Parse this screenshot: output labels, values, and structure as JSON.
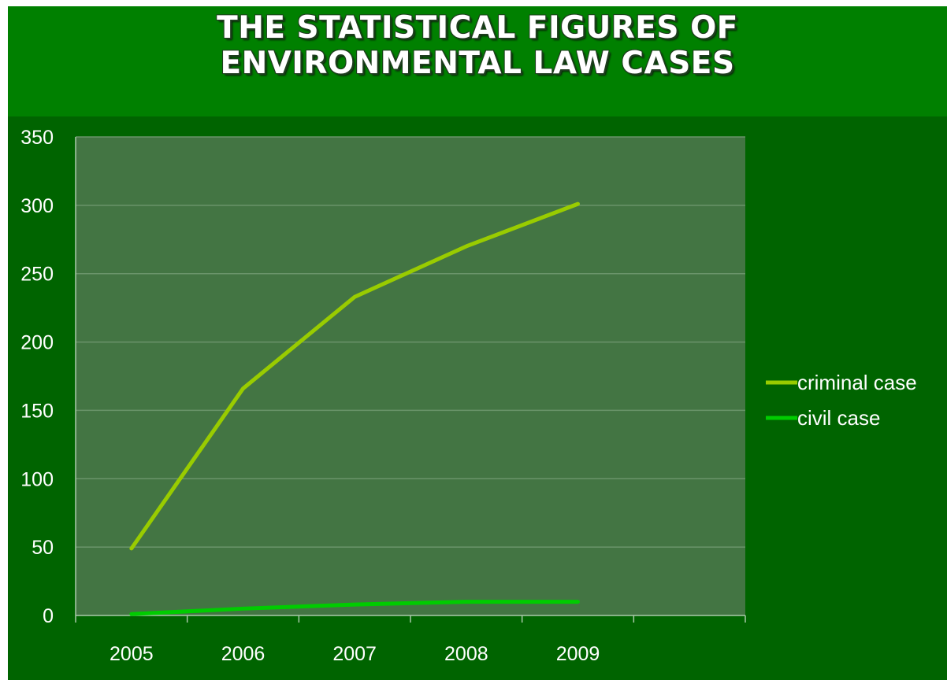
{
  "chart_data": {
    "type": "line",
    "title": "THE STATISTICAL FIGURES OF\nENVIRONMENTAL LAW CASES",
    "categories": [
      "2005",
      "2006",
      "2007",
      "2008",
      "2009"
    ],
    "yticks": [
      "0",
      "50",
      "100",
      "150",
      "200",
      "250",
      "300",
      "350"
    ],
    "ylim": [
      0,
      350
    ],
    "grid": true,
    "legend": "right",
    "series": [
      {
        "name": "criminal case",
        "values": [
          49,
          166,
          233,
          270,
          301
        ],
        "color": "#99cc00"
      },
      {
        "name": "civil case",
        "values": [
          1,
          5,
          8,
          10,
          10
        ],
        "color": "#00cc00"
      }
    ]
  }
}
